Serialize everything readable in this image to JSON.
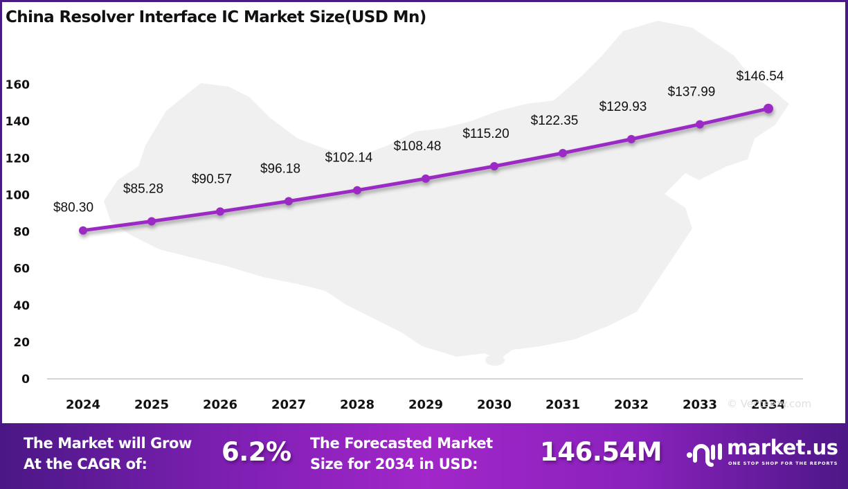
{
  "title": "China Resolver Interface IC Market Size(USD Mn)",
  "chart_data": {
    "type": "line",
    "title": "China Resolver Interface IC Market Size(USD Mn)",
    "xlabel": "",
    "ylabel": "",
    "categories": [
      "2024",
      "2025",
      "2026",
      "2027",
      "2028",
      "2029",
      "2030",
      "2031",
      "2032",
      "2033",
      "2034"
    ],
    "series": [
      {
        "name": "Market Size (USD Mn)",
        "values": [
          80.3,
          85.28,
          90.57,
          96.18,
          102.14,
          108.48,
          115.2,
          122.35,
          129.93,
          137.99,
          146.54
        ],
        "labels": [
          "$80.30",
          "$85.28",
          "$90.57",
          "$96.18",
          "$102.14",
          "$108.48",
          "$115.20",
          "$122.35",
          "$129.93",
          "$137.99",
          "$146.54"
        ],
        "color": "#9b2bc4"
      }
    ],
    "yticks": [
      "0",
      "20",
      "40",
      "60",
      "80",
      "100",
      "120",
      "140",
      "160"
    ],
    "ylim": [
      0,
      160
    ],
    "grid": false,
    "legend": "none"
  },
  "watermark": "© Vecteezy.com",
  "banner": {
    "cagr_label_line1": "The Market will Grow",
    "cagr_label_line2": "At the CAGR of:",
    "cagr_value": "6.2%",
    "forecast_label_line1": "The Forecasted Market",
    "forecast_label_line2": "Size for 2034 in USD:",
    "forecast_value": "146.54M",
    "logo_name": "market.us",
    "logo_tagline": "ONE STOP SHOP FOR THE REPORTS"
  },
  "colors": {
    "line": "#9b2bc4",
    "frame": "#4a1a86",
    "banner_mid": "#a226c9",
    "banner_edge": "#4a1785"
  }
}
